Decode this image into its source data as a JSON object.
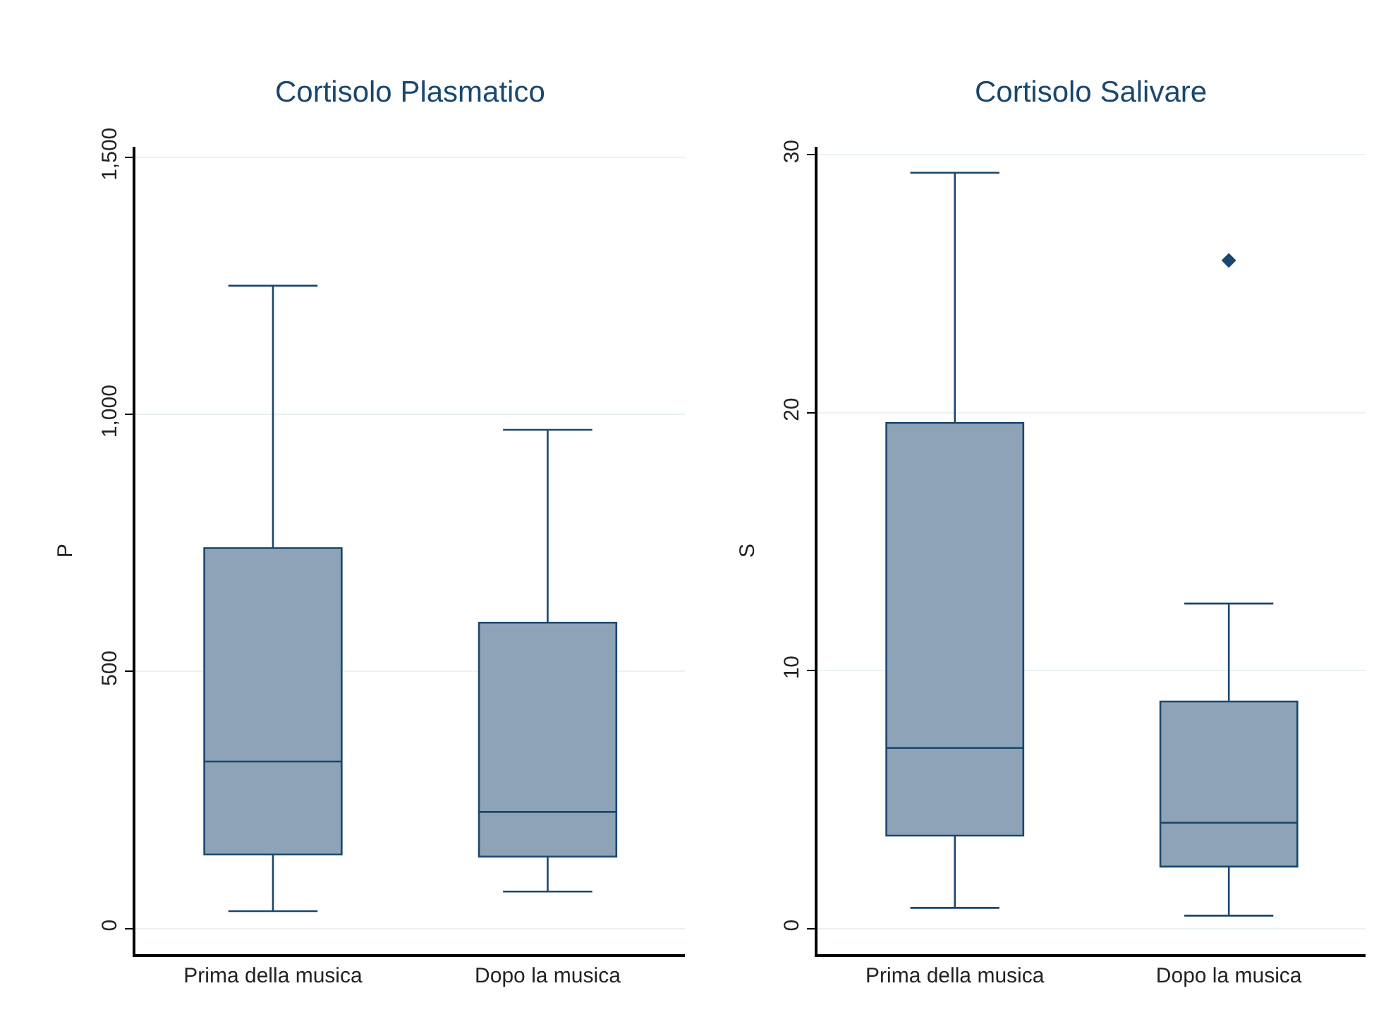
{
  "chart_data": [
    {
      "type": "box",
      "title": "Cortisolo Plasmatico",
      "ylabel": "P",
      "categories": [
        "Prima della musica",
        "Dopo la musica"
      ],
      "color": "#8ea3b7",
      "boxes": [
        {
          "low": 34,
          "q1": 144,
          "median": 325,
          "q3": 740,
          "high": 1250
        },
        {
          "low": 72,
          "q1": 140,
          "median": 227,
          "q3": 595,
          "high": 970
        }
      ],
      "ylim": [
        -50,
        1520
      ],
      "yticks": [
        0,
        500,
        {
          "value": 1000,
          "label": "1,000"
        },
        {
          "value": 1500,
          "label": "1,500"
        }
      ],
      "grid": "y"
    },
    {
      "type": "box",
      "title": "Cortisolo Salivare",
      "ylabel": "S",
      "categories": [
        "Prima della musica",
        "Dopo la musica"
      ],
      "color": "#8ea3b7",
      "boxes": [
        {
          "low": 0.8,
          "q1": 3.6,
          "median": 7.0,
          "q3": 19.6,
          "high": 29.3
        },
        {
          "low": 0.5,
          "q1": 2.4,
          "median": 4.1,
          "q3": 8.8,
          "high": 12.6,
          "outliers": [
            25.9
          ]
        }
      ],
      "ylim": [
        -1,
        30.3
      ],
      "yticks": [
        0,
        10,
        20,
        30
      ],
      "grid": "y",
      "marker": "diamond"
    }
  ]
}
